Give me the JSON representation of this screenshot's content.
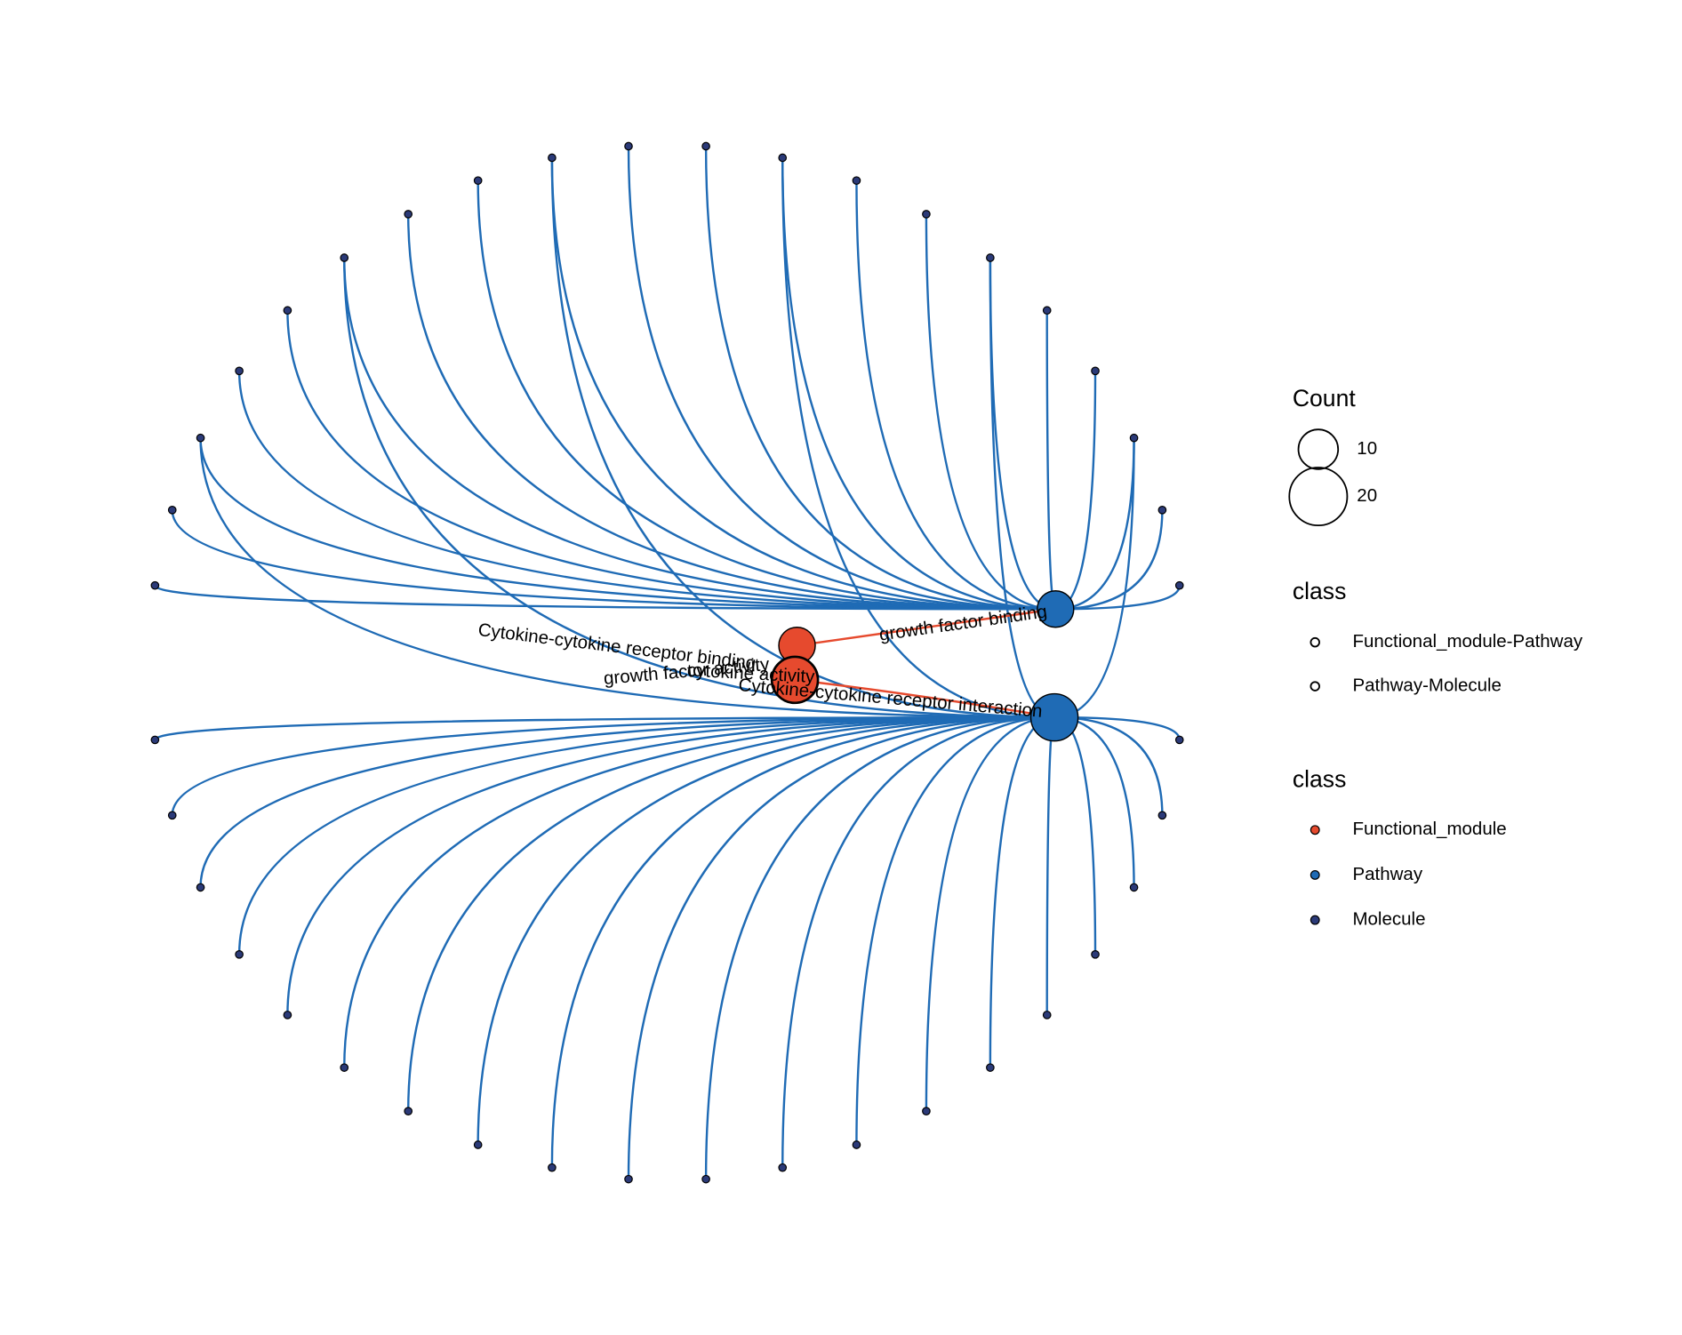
{
  "network": {
    "functional_modules": [
      "Cytokine-cytokine receptor binding",
      "growth factor activity",
      "cytokine activity"
    ],
    "pathways": [
      "growth factor binding",
      "Cytokine-cytokine receptor interaction"
    ]
  },
  "legend": {
    "count": {
      "title": "Count",
      "sizes": [
        10,
        20
      ]
    },
    "edge_class": {
      "title": "class",
      "items": [
        "Functional_module-Pathway",
        "Pathway-Molecule"
      ]
    },
    "node_class": {
      "title": "class",
      "items": [
        "Functional_module",
        "Pathway",
        "Molecule"
      ]
    }
  }
}
